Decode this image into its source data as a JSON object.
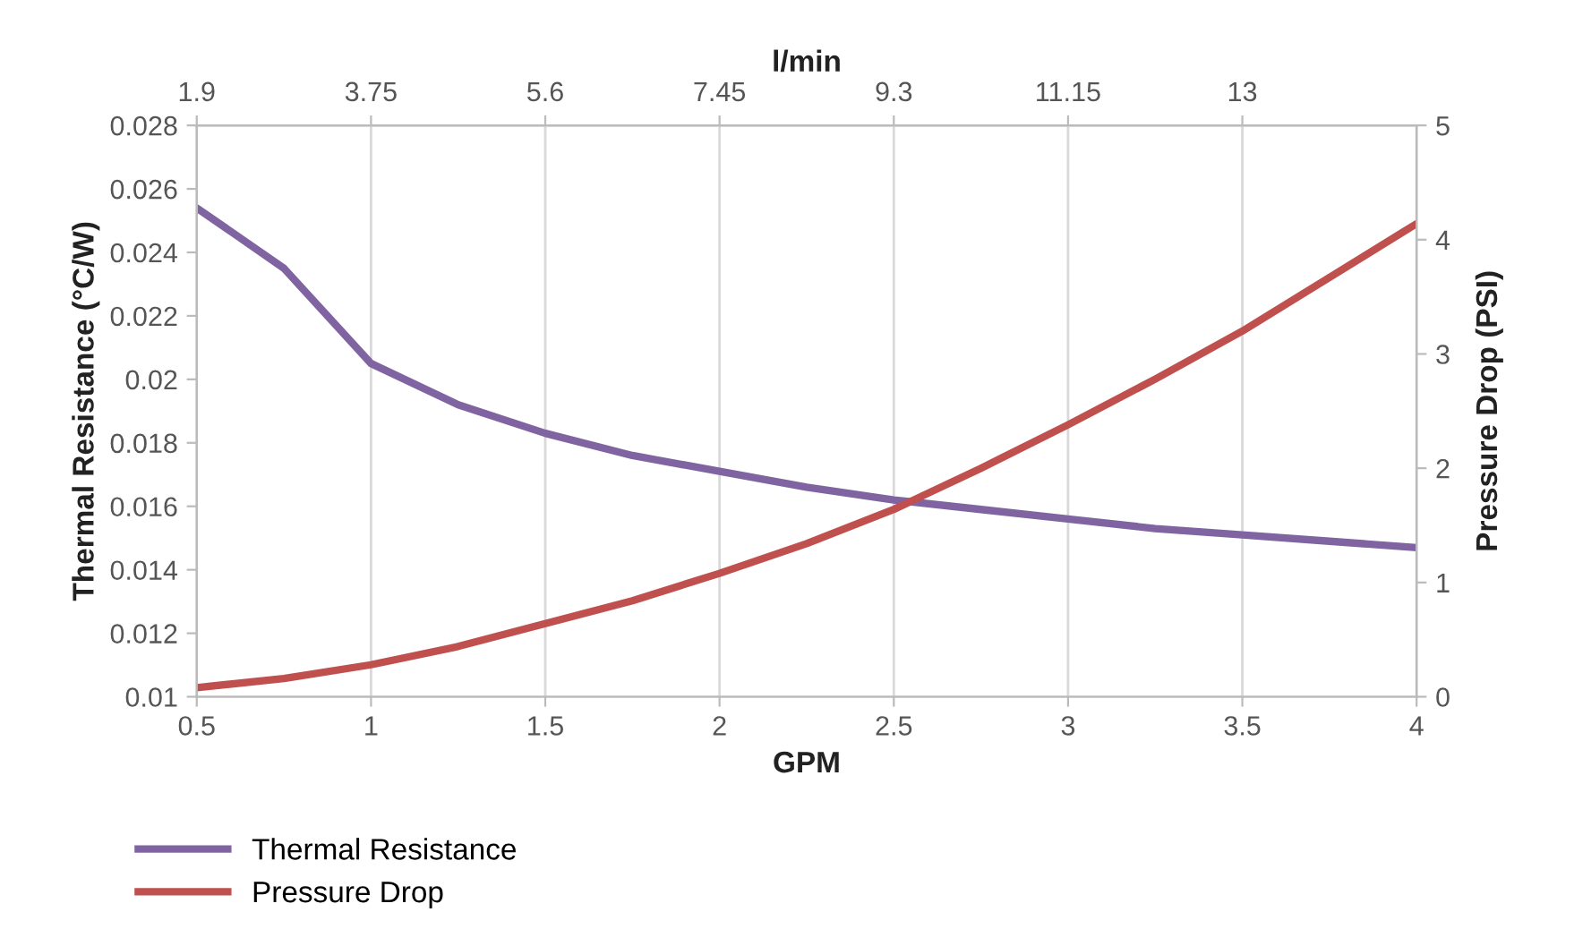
{
  "chart_data": {
    "type": "line",
    "xlabel": "GPM",
    "ylabel": "Thermal Resistance (°C/W)",
    "y2label": "Pressure Drop (PSI)",
    "x2label": "l/min",
    "x": [
      0.5,
      0.75,
      1,
      1.25,
      1.5,
      1.75,
      2,
      2.25,
      2.5,
      2.75,
      3,
      3.25,
      3.5,
      3.75,
      4
    ],
    "series": [
      {
        "name": "Thermal Resistance",
        "color": "#8064a2",
        "values": [
          0.0254,
          0.0235,
          0.0205,
          0.0192,
          0.0183,
          0.0176,
          0.0171,
          0.0166,
          0.0162,
          0.0159,
          0.0156,
          0.0153,
          0.0151,
          0.0149,
          0.0147
        ]
      },
      {
        "name": "Pressure Drop",
        "color": "#c0504d",
        "axis": "y2",
        "values": [
          0.08,
          0.16,
          0.28,
          0.44,
          0.64,
          0.84,
          1.08,
          1.34,
          1.64,
          2.0,
          2.38,
          2.78,
          3.2,
          3.67,
          4.14
        ]
      }
    ],
    "xlim": [
      0.5,
      4
    ],
    "xticks": [
      0.5,
      1,
      1.5,
      2,
      2.5,
      3,
      3.5,
      4
    ],
    "ylim": [
      0.01,
      0.028
    ],
    "yticks": [
      0.01,
      0.012,
      0.014,
      0.016,
      0.018,
      0.02,
      0.022,
      0.024,
      0.026,
      0.028
    ],
    "y2lim": [
      0,
      5
    ],
    "y2ticks": [
      0,
      1,
      2,
      3,
      4,
      5
    ],
    "x2lim": [
      1.9,
      14.85
    ],
    "x2ticks": [
      1.9,
      3.75,
      5.6,
      7.45,
      9.3,
      11.15,
      13
    ],
    "grid": "x",
    "legend": "bottom",
    "marker": "none",
    "line_style": "solid"
  }
}
